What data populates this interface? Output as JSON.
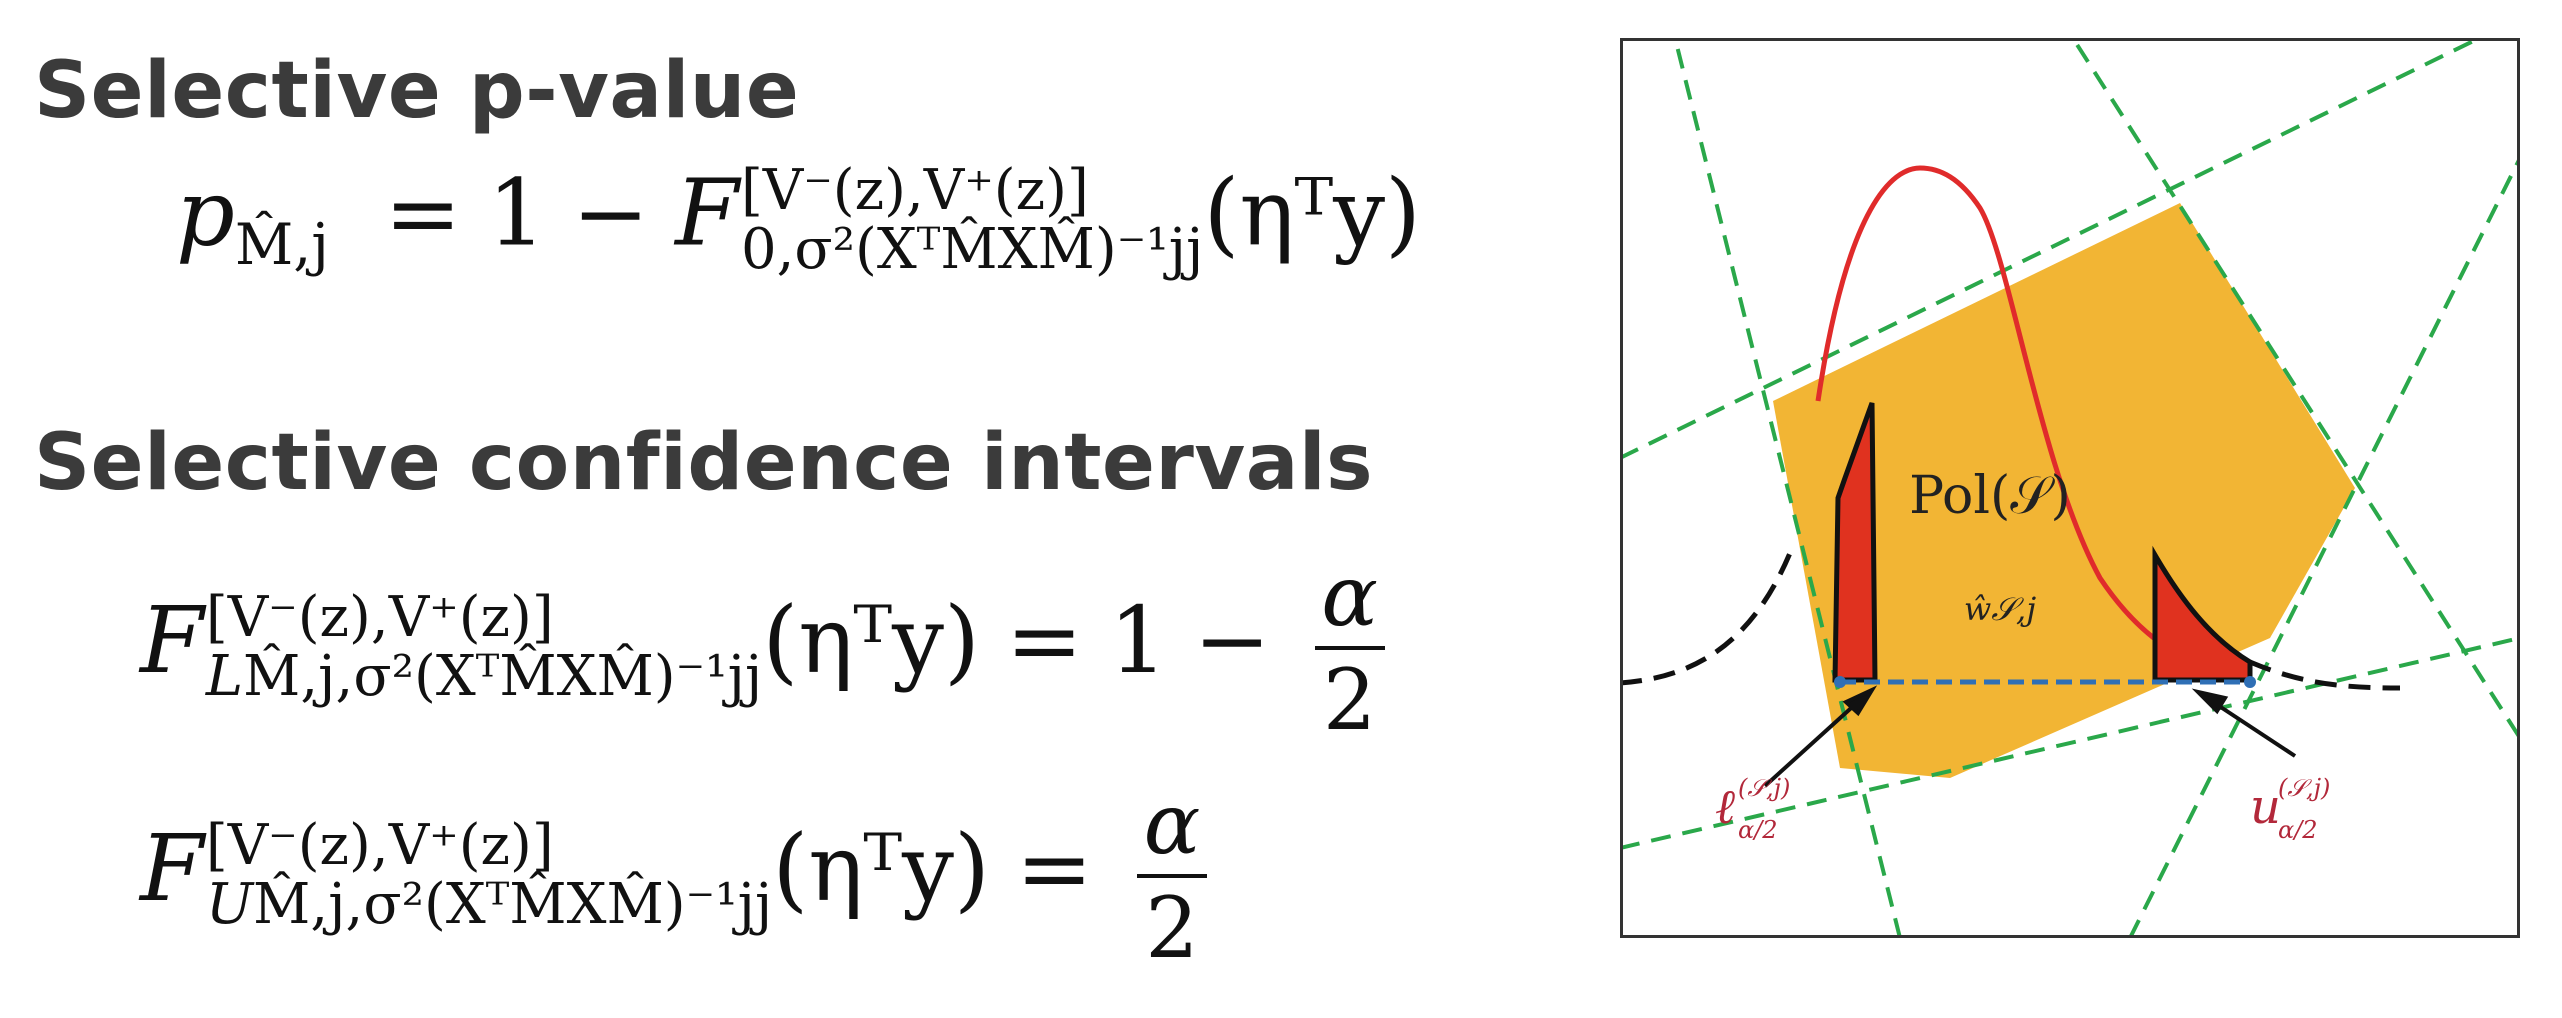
{
  "headings": {
    "pvalue": "Selective p-value",
    "ci": "Selective confidence intervals"
  },
  "equations": {
    "pvalue": {
      "lhs_symbol": "p",
      "lhs_sub": "M̂,j",
      "equals": "=",
      "one": "1",
      "minus": "−",
      "F": "F",
      "sup": "[V⁻(z),V⁺(z)]",
      "sub": "0,σ²(X",
      "sub_rest": "ᵀM̂XM̂)⁻¹jj",
      "arg": "(ηᵀy)"
    },
    "lower": {
      "F": "F",
      "sup": "[V⁻(z),V⁺(z)]",
      "sub": "L",
      "sub_rest": "M̂,j,σ²(XᵀM̂XM̂)⁻¹jj",
      "arg": "(ηᵀy)",
      "equals": "=",
      "one": "1",
      "minus": "−",
      "alpha": "α",
      "two": "2"
    },
    "upper": {
      "F": "F",
      "sup": "[V⁻(z),V⁺(z)]",
      "sub": "U",
      "sub_rest": "M̂,j,σ²(XᵀM̂XM̂)⁻¹jj",
      "arg": "(ηᵀy)",
      "equals": "=",
      "alpha": "α",
      "two": "2"
    }
  },
  "diagram": {
    "polytope_label": "Pol(𝒮)",
    "w_hat_label": "ŵ𝒮,j",
    "lower_label": "ℓ",
    "lower_label_sup": "(𝒮,j)",
    "lower_label_sub": "α/2",
    "upper_label": "u",
    "upper_label_sup": "(𝒮,j)",
    "upper_label_sub": "α/2",
    "colors": {
      "polytope": "#f2b534",
      "curve": "#e02b2b",
      "tail_fill": "#e0321f",
      "guide_lines": "#2aa84a",
      "segment": "#2f6fb5",
      "label_text": "#b2283a",
      "frame": "#333333"
    }
  }
}
